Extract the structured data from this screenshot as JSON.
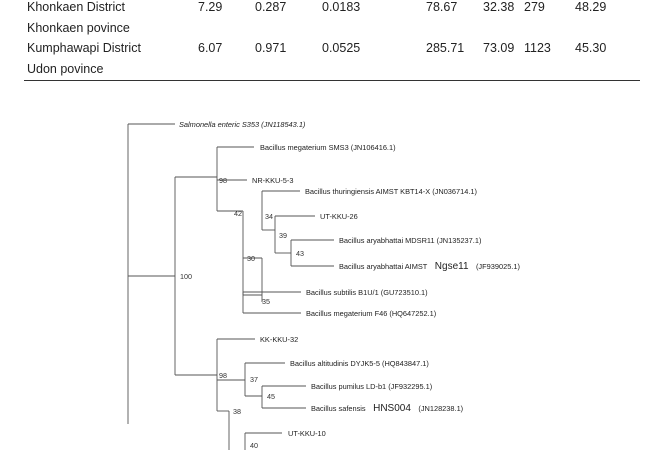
{
  "table": {
    "rows": [
      {
        "label": "Khonkaen District",
        "cells": [
          "7.29",
          "0.287",
          "0.0183",
          "78.67",
          "32.38",
          "279",
          "48.29"
        ]
      },
      {
        "label": "Khonkaen povince",
        "cells": []
      },
      {
        "label": "Kumphawapi District",
        "cells": [
          "6.07",
          "0.971",
          "0.0525",
          "285.71",
          "73.09",
          "1123",
          "45.30"
        ]
      },
      {
        "label": "Udon povince",
        "cells": []
      }
    ]
  },
  "tree": {
    "taxa": {
      "t1": "Salmonella enteric S353 (JN118543.1)",
      "t2": "Bacillus megaterium SMS3 (JN106416.1)",
      "t3": "NR-KKU-5-3",
      "t4": "Bacillus thuringiensis AIMST KBT14-X (JN036714.1)",
      "t5": "UT-KKU-26",
      "t6": "Bacillus aryabhattai MDSR11 (JN135237.1)",
      "t7a": "Bacillus aryabhattai AIMST",
      "t7b": "Ngse11",
      "t7c": "(JF939025.1)",
      "t8": "Bacillus subtilis B1U/1 (GU723510.1)",
      "t9": "Bacillus megaterium F46 (HQ647252.1)",
      "t10": "KK-KKU-32",
      "t11": "Bacillus altitudinis DYJK5-5 (HQ843847.1)",
      "t12": "Bacillus pumilus LD-b1 (JF932295.1)",
      "t13a": "Bacillus safensis",
      "t13b": "HNS004",
      "t13c": "(JN128238.1)",
      "t14": "UT-KKU-10"
    },
    "bootstrap": {
      "b100": "100",
      "b98a": "98",
      "b42": "42",
      "b34": "34",
      "b39": "39",
      "b43": "43",
      "b30": "30",
      "b35": "35",
      "b98b": "98",
      "b37": "37",
      "b45": "45",
      "b38": "38",
      "b40": "40"
    }
  }
}
